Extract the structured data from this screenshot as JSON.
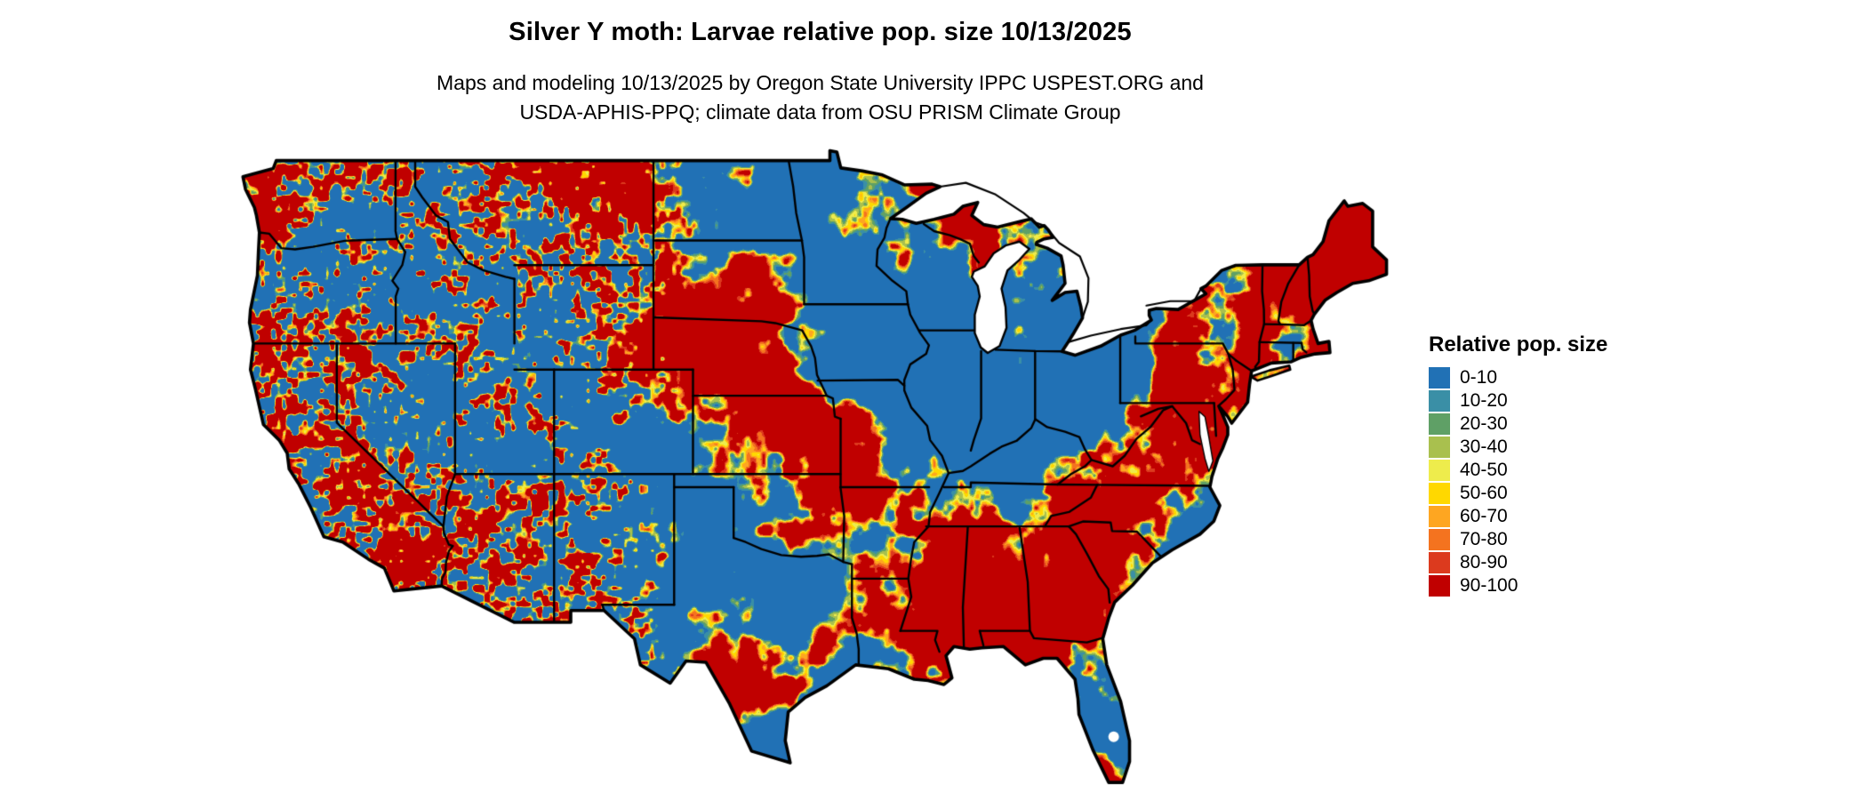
{
  "title": "Silver Y moth: Larvae relative pop. size 10/13/2025",
  "subtitle_line1": "Maps and modeling 10/13/2025 by Oregon State University IPPC USPEST.ORG and",
  "subtitle_line2": "USDA-APHIS-PPQ; climate data from OSU PRISM Climate Group",
  "legend": {
    "title": "Relative pop. size",
    "items": [
      {
        "label": "0-10",
        "color": "#2171b5"
      },
      {
        "label": "10-20",
        "color": "#3a8fa6"
      },
      {
        "label": "20-30",
        "color": "#5fa066"
      },
      {
        "label": "30-40",
        "color": "#a9c04e"
      },
      {
        "label": "40-50",
        "color": "#eeec4c"
      },
      {
        "label": "50-60",
        "color": "#ffd800"
      },
      {
        "label": "60-70",
        "color": "#fea621"
      },
      {
        "label": "70-80",
        "color": "#f4731f"
      },
      {
        "label": "80-90",
        "color": "#dc3a1e"
      },
      {
        "label": "90-100",
        "color": "#c00000"
      }
    ]
  }
}
